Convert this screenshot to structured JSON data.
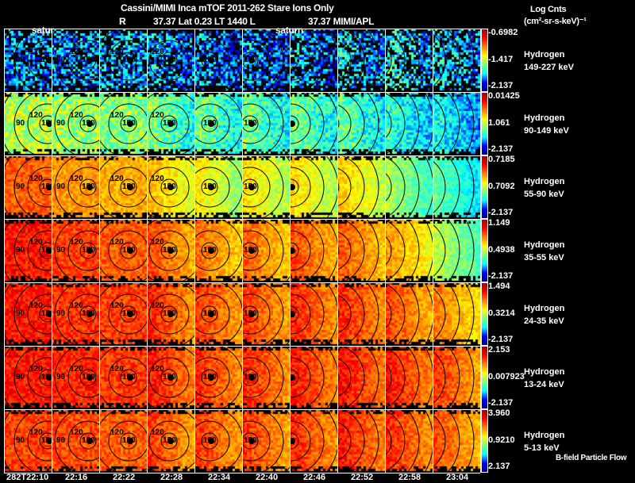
{
  "header": {
    "title": "Cassini/MIMI Inca mTOF  2011-262    Stare    Ions Only",
    "line2_r": "R",
    "line2_mid": "37.37 Lat 0.23 LT 1440 L",
    "line2_end": "37.37  MIMI/APL",
    "overlay_labels": [
      "satur",
      "saturn"
    ]
  },
  "colorbar_title": [
    "Log Cnts",
    "(cm²-sr-s-keV)⁻¹"
  ],
  "footer_note": "B-field Particle Flow",
  "chart_data": {
    "type": "heatmap",
    "title": "Cassini/MIMI Inca mTOF  2011-262  Stare  Ions Only",
    "x_tick_labels": [
      "282T22:10",
      "22:16",
      "22:22",
      "22:28",
      "22:34",
      "22:40",
      "22:46",
      "22:52",
      "22:58",
      "23:04"
    ],
    "contour_levels": [
      30,
      60,
      90,
      120,
      150
    ],
    "rows": [
      {
        "species": "Hydrogen",
        "energy": "149-227 keV",
        "cmax": "-0.6982",
        "cmid": "-1.417",
        "cmin": "-2.137",
        "mean_level": [
          0.25,
          0.25,
          0.28,
          0.25,
          0.22,
          0.22,
          0.25,
          0.28,
          0.32,
          0.3
        ]
      },
      {
        "species": "Hydrogen",
        "energy": "90-149 keV",
        "cmax": "0.01425",
        "cmid": "1.061",
        "cmin": "-2.137",
        "mean_level": [
          0.55,
          0.52,
          0.5,
          0.45,
          0.42,
          0.42,
          0.42,
          0.4,
          0.35,
          0.3
        ]
      },
      {
        "species": "Hydrogen",
        "energy": "55-90 keV",
        "cmax": "0.7185",
        "cmid": "0.7092",
        "cmin": "-2.137",
        "mean_level": [
          0.82,
          0.75,
          0.72,
          0.65,
          0.58,
          0.6,
          0.6,
          0.62,
          0.48,
          0.4
        ]
      },
      {
        "species": "Hydrogen",
        "energy": "35-55 keV",
        "cmax": "1.149",
        "cmid": "0.4938",
        "cmin": "-2.137",
        "mean_level": [
          0.9,
          0.85,
          0.82,
          0.78,
          0.74,
          0.75,
          0.78,
          0.76,
          0.68,
          0.5
        ]
      },
      {
        "species": "Hydrogen",
        "energy": "24-35 keV",
        "cmax": "1.494",
        "cmid": "0.3214",
        "cmin": "-2.137",
        "mean_level": [
          0.9,
          0.87,
          0.85,
          0.82,
          0.8,
          0.8,
          0.82,
          0.82,
          0.78,
          0.72
        ]
      },
      {
        "species": "Hydrogen",
        "energy": "13-24 keV",
        "cmax": "2.153",
        "cmid": "0.007923",
        "cmin": "-2.137",
        "mean_level": [
          0.9,
          0.88,
          0.86,
          0.84,
          0.82,
          0.82,
          0.84,
          0.85,
          0.84,
          0.8
        ]
      },
      {
        "species": "Hydrogen",
        "energy": "5-13 keV",
        "cmax": "3.960",
        "cmid": "0.9210",
        "cmin": "2.137",
        "mean_level": [
          0.85,
          0.84,
          0.82,
          0.8,
          0.8,
          0.8,
          0.82,
          0.84,
          0.82,
          0.78
        ]
      }
    ]
  }
}
